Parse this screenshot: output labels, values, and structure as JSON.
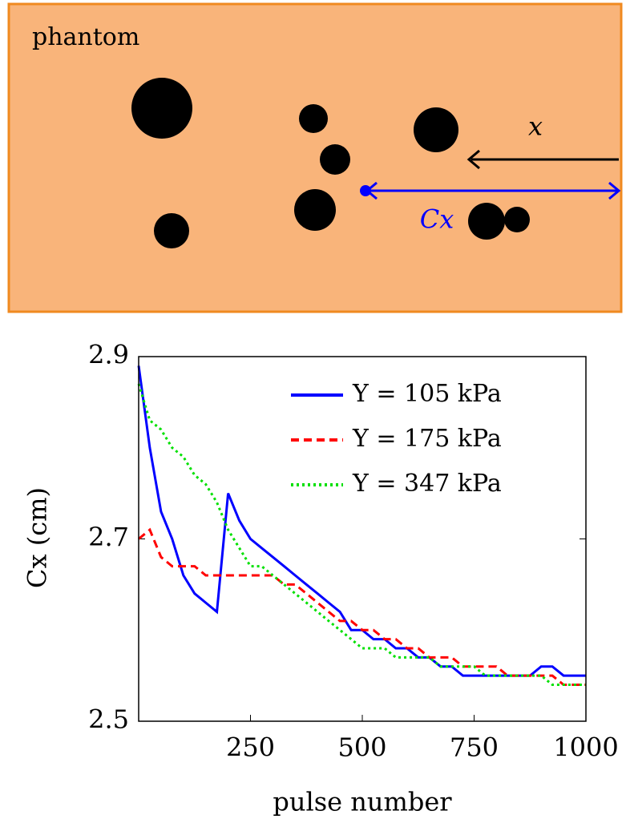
{
  "diagram": {
    "label": "phantom",
    "arrow_label": "x",
    "distance_label": "Cx"
  },
  "chart_data": {
    "type": "line",
    "x_label": "pulse number",
    "y_label": "Cx (cm)",
    "x": [
      0,
      25,
      50,
      75,
      100,
      125,
      150,
      175,
      200,
      225,
      250,
      275,
      300,
      325,
      350,
      375,
      400,
      425,
      450,
      475,
      500,
      525,
      550,
      575,
      600,
      625,
      650,
      675,
      700,
      725,
      750,
      775,
      800,
      825,
      850,
      875,
      900,
      925,
      950,
      975,
      1000
    ],
    "series": [
      {
        "name": "Y = 105 kPa",
        "color": "#0000ff",
        "style": "solid",
        "values": [
          2.89,
          2.8,
          2.73,
          2.7,
          2.66,
          2.64,
          2.63,
          2.62,
          2.75,
          2.72,
          2.7,
          2.69,
          2.68,
          2.67,
          2.66,
          2.65,
          2.64,
          2.63,
          2.62,
          2.6,
          2.6,
          2.59,
          2.59,
          2.58,
          2.58,
          2.57,
          2.57,
          2.56,
          2.56,
          2.55,
          2.55,
          2.55,
          2.55,
          2.55,
          2.55,
          2.55,
          2.56,
          2.56,
          2.55,
          2.55,
          2.55
        ]
      },
      {
        "name": "Y = 175 kPa",
        "color": "#ff0000",
        "style": "dashed",
        "values": [
          2.7,
          2.71,
          2.68,
          2.67,
          2.67,
          2.67,
          2.66,
          2.66,
          2.66,
          2.66,
          2.66,
          2.66,
          2.66,
          2.65,
          2.65,
          2.64,
          2.63,
          2.62,
          2.61,
          2.61,
          2.6,
          2.6,
          2.59,
          2.59,
          2.58,
          2.58,
          2.57,
          2.57,
          2.57,
          2.56,
          2.56,
          2.56,
          2.56,
          2.55,
          2.55,
          2.55,
          2.55,
          2.55,
          2.54,
          2.54,
          2.54
        ]
      },
      {
        "name": "Y = 347 kPa",
        "color": "#00e000",
        "style": "dotted",
        "values": [
          2.87,
          2.83,
          2.82,
          2.8,
          2.79,
          2.77,
          2.76,
          2.74,
          2.71,
          2.69,
          2.67,
          2.67,
          2.66,
          2.65,
          2.64,
          2.63,
          2.62,
          2.61,
          2.6,
          2.59,
          2.58,
          2.58,
          2.58,
          2.57,
          2.57,
          2.57,
          2.57,
          2.56,
          2.56,
          2.56,
          2.56,
          2.55,
          2.55,
          2.55,
          2.55,
          2.55,
          2.55,
          2.54,
          2.54,
          2.54,
          2.54
        ]
      }
    ],
    "xlim": [
      0,
      1000
    ],
    "xticks": [
      250,
      500,
      750,
      1000
    ],
    "ylim": [
      2.5,
      2.9
    ],
    "yticks": [
      2.5,
      2.7,
      2.9
    ],
    "legend": "upper right"
  }
}
